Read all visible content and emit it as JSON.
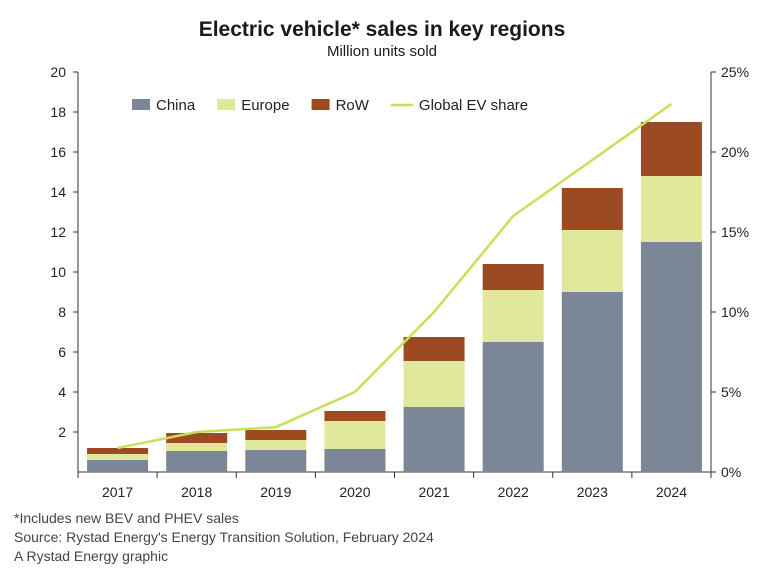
{
  "chart_data": {
    "type": "bar",
    "stacked": true,
    "title": "Electric vehicle* sales in key regions",
    "subtitle": "Million units sold",
    "categories": [
      "2017",
      "2018",
      "2019",
      "2020",
      "2021",
      "2022",
      "2023",
      "2024"
    ],
    "series": [
      {
        "name": "China",
        "color": "#7b8797",
        "values": [
          0.6,
          1.05,
          1.1,
          1.15,
          3.25,
          6.5,
          9.0,
          11.5
        ]
      },
      {
        "name": "Europe",
        "color": "#dfe89b",
        "values": [
          0.3,
          0.4,
          0.5,
          1.4,
          2.3,
          2.6,
          3.1,
          3.3
        ]
      },
      {
        "name": "RoW",
        "color": "#9b4a22",
        "values": [
          0.3,
          0.5,
          0.5,
          0.5,
          1.2,
          1.3,
          2.1,
          2.7
        ]
      }
    ],
    "line_series": {
      "name": "Global EV share",
      "color": "#c9de5a",
      "axis": "right",
      "values": [
        1.5,
        2.5,
        2.8,
        5.0,
        10.0,
        16.0,
        19.5,
        23.0
      ]
    },
    "ylim": [
      0,
      20
    ],
    "yticks": [
      2,
      4,
      6,
      8,
      10,
      12,
      14,
      16,
      18,
      20
    ],
    "y2lim": [
      0,
      25
    ],
    "y2ticks": [
      "0%",
      "5%",
      "10%",
      "15%",
      "20%",
      "25%"
    ],
    "legend": "top-left"
  },
  "footnotes": {
    "note": "*Includes new BEV and PHEV sales",
    "source": "Source: Rystad Energy's Energy Transition Solution, February 2024",
    "credit": "A Rystad Energy graphic"
  }
}
